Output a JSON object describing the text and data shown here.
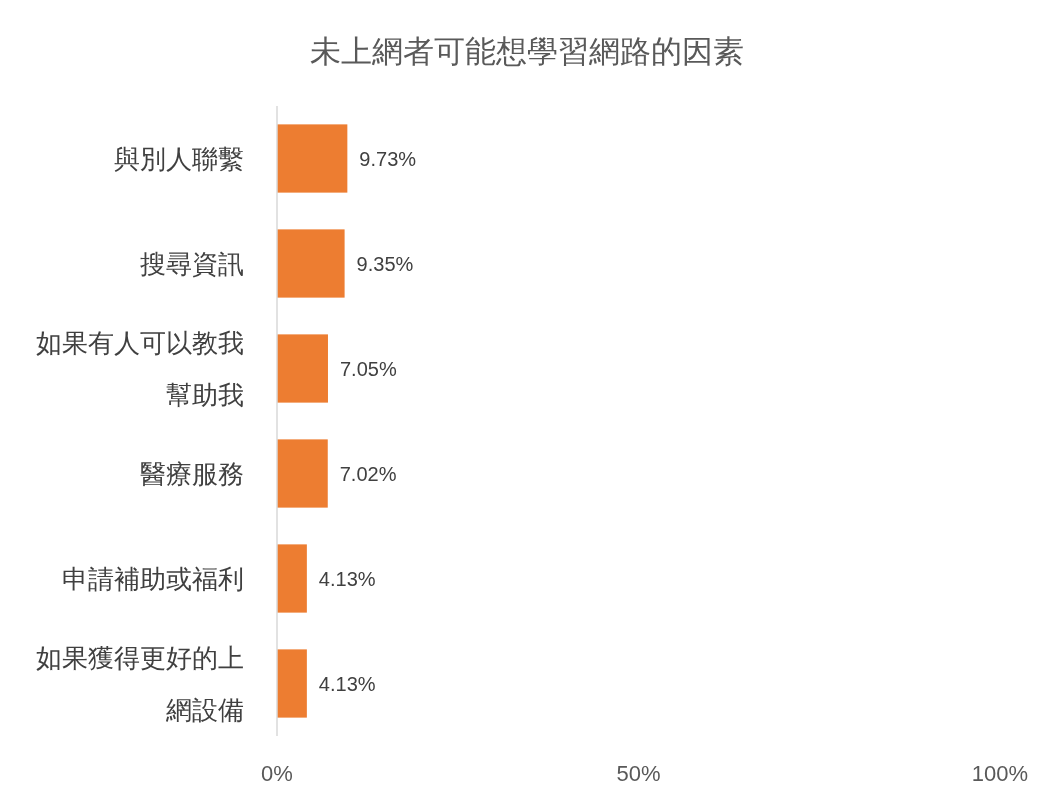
{
  "chart_data": {
    "type": "bar",
    "orientation": "horizontal",
    "title": "未上網者可能想學習網路的因素",
    "categories": [
      "與別人聯繫",
      "搜尋資訊",
      "如果有人可以教我幫助我",
      "醫療服務",
      "申請補助或福利",
      "如果獲得更好的上網設備"
    ],
    "values": [
      9.73,
      9.35,
      7.05,
      7.02,
      4.13,
      4.13
    ],
    "value_labels": [
      "9.73%",
      "9.35%",
      "7.05%",
      "7.02%",
      "4.13%",
      "4.13%"
    ],
    "color": "#ed7d31",
    "xlim": [
      0,
      100
    ],
    "xticks": [
      {
        "value": 0,
        "label": "0%"
      },
      {
        "value": 50,
        "label": "50%"
      },
      {
        "value": 100,
        "label": "100%"
      }
    ],
    "grid": false
  }
}
